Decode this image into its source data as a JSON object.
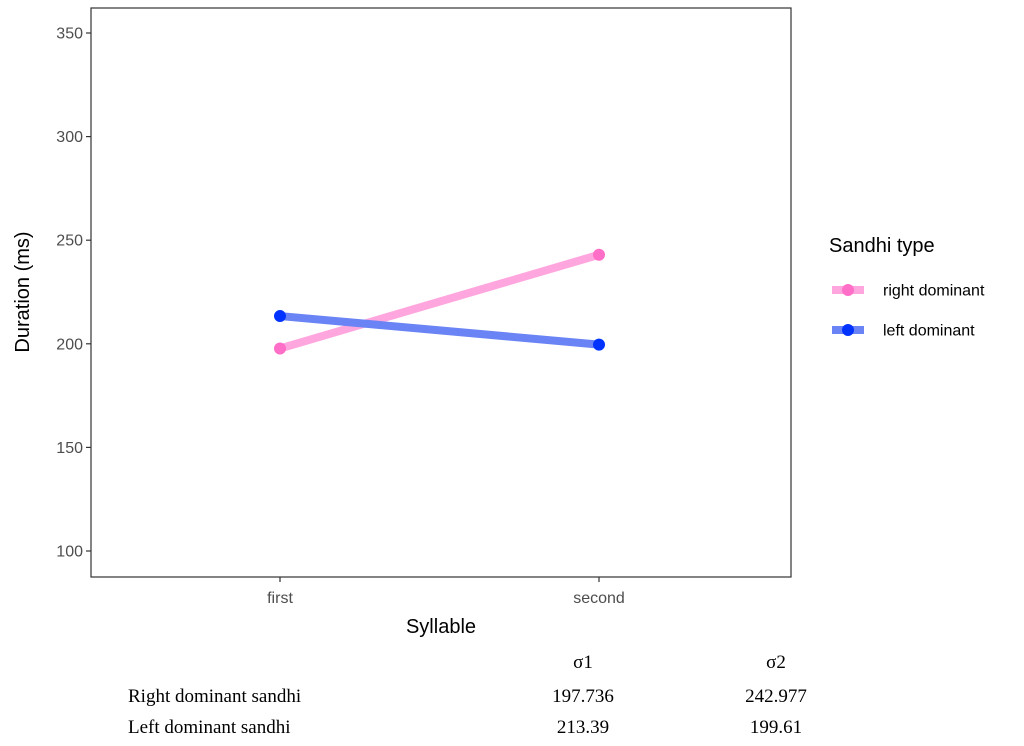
{
  "chart_data": {
    "type": "line",
    "categories": [
      "first",
      "second"
    ],
    "xlabel": "Syllable",
    "ylabel": "Duration (ms)",
    "ylim": [
      100,
      350
    ],
    "yticks": [
      100,
      150,
      200,
      250,
      300,
      350
    ],
    "grid": false,
    "legend": {
      "title": "Sandhi type",
      "placement": "right"
    },
    "series": [
      {
        "name": "right dominant",
        "values": [
          197.736,
          242.977
        ],
        "color": "#ff6ec7",
        "line_color": "#ffa6de"
      },
      {
        "name": "left dominant",
        "values": [
          213.39,
          199.61
        ],
        "color": "#0033ff",
        "line_color": "#6b84f5"
      }
    ]
  },
  "table": {
    "headers": [
      "σ1",
      "σ2"
    ],
    "rows": [
      {
        "label": "Right dominant sandhi",
        "values": [
          "197.736",
          "242.977"
        ]
      },
      {
        "label": "Left dominant sandhi",
        "values": [
          "213.39",
          "199.61"
        ]
      }
    ]
  }
}
